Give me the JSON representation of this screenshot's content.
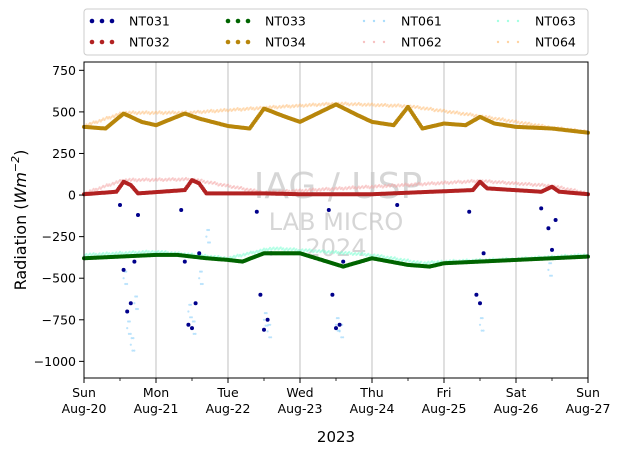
{
  "chart_data": {
    "type": "scatter",
    "xlabel": "2023",
    "ylabel_prefix": "Radiation (",
    "ylabel_unit": "Wm",
    "ylabel_exp": "−2",
    "ylabel_suffix": ")",
    "ylim": [
      -1100,
      800
    ],
    "yticks": [
      750,
      500,
      250,
      0,
      -250,
      -500,
      -750,
      -1000
    ],
    "ytick_labels": [
      "750",
      "500",
      "250",
      "0",
      "−250",
      "−500",
      "−750",
      "−1000"
    ],
    "xlim": [
      "2023-08-20",
      "2023-08-27"
    ],
    "xticks": [
      {
        "day": "Sun",
        "date": "Aug-20"
      },
      {
        "day": "Mon",
        "date": "Aug-21"
      },
      {
        "day": "Tue",
        "date": "Aug-22"
      },
      {
        "day": "Wed",
        "date": "Aug-23"
      },
      {
        "day": "Thu",
        "date": "Aug-24"
      },
      {
        "day": "Fri",
        "date": "Aug-25"
      },
      {
        "day": "Sat",
        "date": "Aug-26"
      },
      {
        "day": "Sun",
        "date": "Aug-27"
      }
    ],
    "grid": "x-only",
    "legend_position": "top",
    "watermark": [
      "IAG / USP",
      "LAB MICRO",
      "2024"
    ],
    "series": [
      {
        "name": "NT031",
        "color": "#00008b",
        "style": "dots",
        "note_points": [
          [
            0.5,
            -60
          ],
          [
            0.55,
            -450
          ],
          [
            0.6,
            -700
          ],
          [
            0.65,
            -650
          ],
          [
            0.7,
            -400
          ],
          [
            0.75,
            -120
          ],
          [
            1.35,
            -90
          ],
          [
            1.4,
            -400
          ],
          [
            1.45,
            -780
          ],
          [
            1.5,
            -800
          ],
          [
            1.55,
            -650
          ],
          [
            1.6,
            -350
          ],
          [
            2.4,
            -100
          ],
          [
            2.45,
            -600
          ],
          [
            2.5,
            -810
          ],
          [
            2.55,
            -750
          ],
          [
            2.6,
            -350
          ],
          [
            3.4,
            -90
          ],
          [
            3.45,
            -600
          ],
          [
            3.5,
            -800
          ],
          [
            3.55,
            -780
          ],
          [
            3.6,
            -400
          ],
          [
            4.35,
            -60
          ],
          [
            5.35,
            -100
          ],
          [
            5.45,
            -600
          ],
          [
            5.5,
            -650
          ],
          [
            5.55,
            -350
          ],
          [
            6.35,
            -80
          ],
          [
            6.45,
            -200
          ],
          [
            6.5,
            -330
          ],
          [
            6.55,
            -150
          ]
        ]
      },
      {
        "name": "NT032",
        "color": "#b22222",
        "style": "dots",
        "note_points": [
          [
            0,
            5
          ],
          [
            0.45,
            20
          ],
          [
            0.55,
            80
          ],
          [
            0.65,
            60
          ],
          [
            0.75,
            10
          ],
          [
            1.4,
            30
          ],
          [
            1.5,
            90
          ],
          [
            1.6,
            70
          ],
          [
            1.7,
            10
          ],
          [
            2.5,
            10
          ],
          [
            3.0,
            5
          ],
          [
            4.0,
            5
          ],
          [
            5.4,
            30
          ],
          [
            5.5,
            80
          ],
          [
            5.6,
            40
          ],
          [
            6.35,
            20
          ],
          [
            6.5,
            50
          ],
          [
            6.6,
            20
          ],
          [
            7,
            5
          ]
        ]
      },
      {
        "name": "NT033",
        "color": "#006400",
        "style": "dots",
        "note_points": [
          [
            0,
            -380
          ],
          [
            0.5,
            -370
          ],
          [
            1,
            -360
          ],
          [
            1.3,
            -360
          ],
          [
            1.7,
            -380
          ],
          [
            2.0,
            -390
          ],
          [
            2.2,
            -400
          ],
          [
            2.5,
            -350
          ],
          [
            3.0,
            -350
          ],
          [
            3.3,
            -390
          ],
          [
            3.6,
            -430
          ],
          [
            4.0,
            -380
          ],
          [
            4.5,
            -420
          ],
          [
            4.8,
            -430
          ],
          [
            5.0,
            -410
          ],
          [
            5.5,
            -400
          ],
          [
            6.0,
            -390
          ],
          [
            6.5,
            -380
          ],
          [
            7,
            -370
          ]
        ]
      },
      {
        "name": "NT034",
        "color": "#b8860b",
        "style": "dots",
        "note_points": [
          [
            0,
            410
          ],
          [
            0.3,
            400
          ],
          [
            0.55,
            490
          ],
          [
            0.8,
            440
          ],
          [
            1.0,
            420
          ],
          [
            1.4,
            490
          ],
          [
            1.6,
            460
          ],
          [
            2.0,
            415
          ],
          [
            2.3,
            400
          ],
          [
            2.5,
            520
          ],
          [
            2.8,
            470
          ],
          [
            3.0,
            440
          ],
          [
            3.5,
            545
          ],
          [
            3.8,
            480
          ],
          [
            4.0,
            440
          ],
          [
            4.3,
            420
          ],
          [
            4.5,
            530
          ],
          [
            4.7,
            400
          ],
          [
            5.0,
            430
          ],
          [
            5.3,
            420
          ],
          [
            5.5,
            470
          ],
          [
            5.7,
            430
          ],
          [
            6.0,
            410
          ],
          [
            6.5,
            400
          ],
          [
            7,
            375
          ]
        ]
      },
      {
        "name": "NT061",
        "color": "#87cefa",
        "style": "faint-dots",
        "note_points": [
          [
            0.55,
            -500
          ],
          [
            0.6,
            -800
          ],
          [
            0.65,
            -900
          ],
          [
            0.7,
            -650
          ],
          [
            1.45,
            -700
          ],
          [
            1.5,
            -800
          ],
          [
            1.6,
            -500
          ],
          [
            1.7,
            -250
          ],
          [
            2.5,
            -750
          ],
          [
            2.55,
            -820
          ],
          [
            3.5,
            -780
          ],
          [
            3.55,
            -820
          ],
          [
            5.5,
            -780
          ],
          [
            6.45,
            -450
          ]
        ]
      },
      {
        "name": "NT062",
        "color": "#f4a6a6",
        "style": "faint-dots",
        "note_points": [
          [
            0,
            10
          ],
          [
            0.55,
            90
          ],
          [
            1.5,
            95
          ],
          [
            2.5,
            15
          ],
          [
            5.5,
            85
          ],
          [
            6.5,
            55
          ],
          [
            7,
            10
          ]
        ]
      },
      {
        "name": "NT063",
        "color": "#7fffd4",
        "style": "faint-dots",
        "note_points": [
          [
            0,
            -360
          ],
          [
            1,
            -340
          ],
          [
            2,
            -380
          ],
          [
            2.6,
            -320
          ],
          [
            3.0,
            -330
          ],
          [
            4.0,
            -360
          ],
          [
            4.7,
            -410
          ],
          [
            5.0,
            -400
          ],
          [
            6.0,
            -385
          ],
          [
            7,
            -360
          ]
        ]
      },
      {
        "name": "NT064",
        "color": "#ffc07a",
        "style": "faint-dots",
        "note_points": [
          [
            0,
            415
          ],
          [
            0.55,
            495
          ],
          [
            1.45,
            495
          ],
          [
            2.5,
            525
          ],
          [
            3.5,
            550
          ],
          [
            4.5,
            535
          ],
          [
            5.5,
            475
          ],
          [
            6.5,
            405
          ],
          [
            7,
            380
          ]
        ]
      }
    ]
  }
}
